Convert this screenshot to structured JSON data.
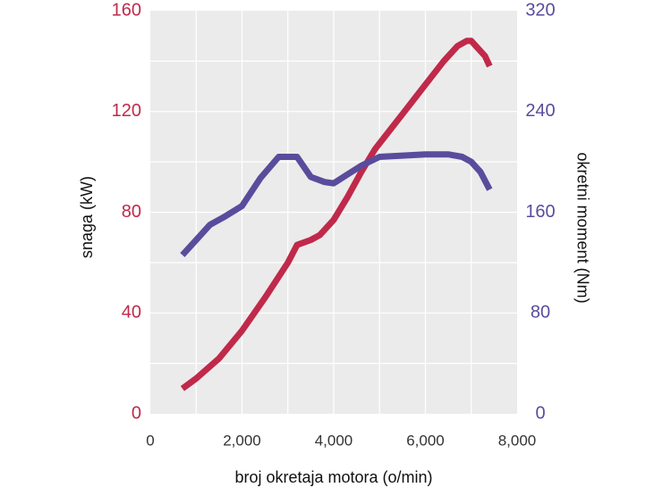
{
  "chart_data": {
    "type": "line",
    "xlabel": "broj okretaja motora (o/min)",
    "ylabel_left": "snaga (kW)",
    "ylabel_right": "okretni moment (Nm)",
    "xlim": [
      0,
      8000
    ],
    "ylim_left": [
      0,
      160
    ],
    "ylim_right": [
      0,
      320
    ],
    "x_ticks": [
      "0",
      "2,000",
      "4,000",
      "6,000",
      "8,000"
    ],
    "y_ticks_left": [
      "0",
      "40",
      "80",
      "120",
      "160"
    ],
    "y_ticks_right": [
      "0",
      "80",
      "160",
      "240",
      "320"
    ],
    "grid": true,
    "colors": {
      "power": "#c0294a",
      "torque": "#5a4c9c",
      "plot_bg": "#ebebeb",
      "grid": "#ffffff"
    },
    "series": [
      {
        "axis": "left",
        "color": "#c0294a",
        "x": [
          700,
          1000,
          1500,
          2000,
          2500,
          3000,
          3200,
          3500,
          3700,
          4000,
          4300,
          4600,
          4900,
          5200,
          5500,
          5800,
          6100,
          6400,
          6700,
          6900,
          7000,
          7100,
          7300,
          7400
        ],
        "y": [
          10,
          14,
          22,
          33,
          46,
          60,
          67,
          69,
          71,
          77,
          86,
          96,
          105,
          112,
          119,
          126,
          133,
          140,
          146,
          148,
          148,
          146,
          142,
          138
        ]
      },
      {
        "axis": "right",
        "color": "#5a4c9c",
        "x": [
          700,
          1000,
          1300,
          1600,
          2000,
          2400,
          2800,
          3000,
          3200,
          3500,
          3800,
          4000,
          4300,
          4600,
          5000,
          5500,
          6000,
          6500,
          6800,
          7000,
          7200,
          7400
        ],
        "y": [
          126,
          138,
          150,
          156,
          165,
          187,
          204,
          204,
          204,
          188,
          184,
          183,
          190,
          197,
          204,
          205,
          206,
          206,
          204,
          200,
          192,
          178
        ]
      }
    ]
  }
}
